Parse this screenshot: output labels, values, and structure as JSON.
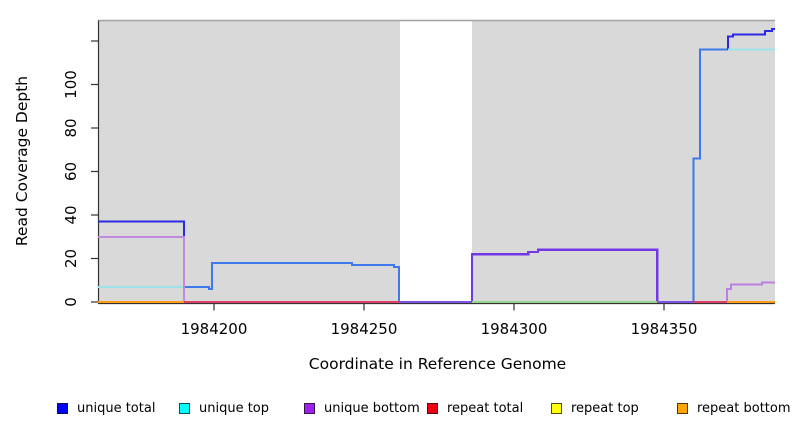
{
  "chart_data": {
    "type": "line",
    "subtype": "step-coverage",
    "title": "",
    "xlabel": "Coordinate in Reference Genome",
    "ylabel": "Read Coverage Depth",
    "xlim": [
      1984161.4,
      1984387
    ],
    "ylim": [
      0,
      129
    ],
    "x_ticks": [
      1984200,
      1984250,
      1984300,
      1984350
    ],
    "y_ticks": [
      0,
      20,
      40,
      60,
      80,
      100
    ],
    "y_extra_unlabeled_tick": 120,
    "grid": false,
    "plot_background": "#d9d9d9",
    "plot_top_border_color": "#a2a2a2",
    "axis_color": "#333333",
    "gap_region": {
      "from": 1984262,
      "to": 1984286
    },
    "legend_position": "bottom",
    "legend": [
      {
        "label": "unique total",
        "color": "#0000ff"
      },
      {
        "label": "unique top",
        "color": "#00ffff"
      },
      {
        "label": "unique bottom",
        "color": "#a020f0"
      },
      {
        "label": "repeat total",
        "color": "#ee0010"
      },
      {
        "label": "repeat top",
        "color": "#ffff00"
      },
      {
        "label": "repeat bottom",
        "color": "#ffa500"
      }
    ],
    "series": [
      {
        "name": "unique total",
        "segments": [
          {
            "color": "#2a2ae2",
            "width": 2,
            "points": [
              [
                1984161.4,
                37
              ],
              [
                1984190,
                37
              ],
              [
                1984190,
                7
              ]
            ]
          },
          {
            "color": "#3e78ec",
            "width": 2,
            "points": [
              [
                1984190,
                7
              ],
              [
                1984198.4,
                7
              ],
              [
                1984198.4,
                6
              ],
              [
                1984199.3,
                6
              ],
              [
                1984199.3,
                18
              ],
              [
                1984246,
                18
              ],
              [
                1984246,
                17
              ],
              [
                1984260,
                17
              ],
              [
                1984260,
                16
              ],
              [
                1984261.7,
                16
              ],
              [
                1984261.7,
                0
              ]
            ]
          },
          {
            "color": "#7338e6",
            "width": 2.4,
            "points": [
              [
                1984286,
                0
              ],
              [
                1984286,
                22
              ],
              [
                1984304.7,
                22
              ],
              [
                1984304.7,
                23
              ],
              [
                1984308,
                23
              ],
              [
                1984308,
                24
              ],
              [
                1984347.7,
                24
              ],
              [
                1984347.7,
                0
              ]
            ]
          },
          {
            "color": "#3e78ec",
            "width": 2,
            "points": [
              [
                1984359.9,
                0
              ],
              [
                1984359.9,
                66
              ],
              [
                1984362,
                66
              ],
              [
                1984362,
                116
              ],
              [
                1984371.3,
                116
              ]
            ]
          },
          {
            "color": "#2a2ae2",
            "width": 2,
            "points": [
              [
                1984371.3,
                116
              ],
              [
                1984371.3,
                122
              ],
              [
                1984373,
                122
              ],
              [
                1984373,
                123
              ],
              [
                1984383.7,
                123
              ],
              [
                1984383.7,
                124.7
              ],
              [
                1984386,
                124.7
              ],
              [
                1984386,
                125.5
              ],
              [
                1984387,
                125.5
              ]
            ]
          }
        ]
      },
      {
        "name": "unique top",
        "segments": [
          {
            "color": "#9be3e9",
            "width": 2,
            "points": [
              [
                1984161.4,
                7
              ],
              [
                1984190,
                7
              ]
            ]
          },
          {
            "color": "#9be3e9",
            "width": 2,
            "points": [
              [
                1984371.3,
                116
              ],
              [
                1984387,
                116
              ]
            ]
          }
        ]
      },
      {
        "name": "unique bottom",
        "segments": [
          {
            "color": "#c08ade",
            "width": 2,
            "points": [
              [
                1984161.4,
                30
              ],
              [
                1984190,
                30
              ],
              [
                1984190,
                0
              ]
            ]
          },
          {
            "color": "#7d50e8",
            "width": 2,
            "points": [
              [
                1984261.7,
                0
              ],
              [
                1984286,
                0
              ]
            ]
          },
          {
            "color": "#7d50e8",
            "width": 2.4,
            "points": [
              [
                1984347.7,
                0
              ],
              [
                1984359.9,
                0
              ]
            ]
          },
          {
            "color": "#bd7fe0",
            "width": 2,
            "points": [
              [
                1984371,
                0
              ],
              [
                1984371,
                6
              ],
              [
                1984372.3,
                6
              ],
              [
                1984372.3,
                8
              ],
              [
                1984382.7,
                8
              ],
              [
                1984382.7,
                9
              ],
              [
                1984387,
                9
              ]
            ]
          }
        ]
      },
      {
        "name": "repeat total",
        "segments": [
          {
            "color": "#dd4066",
            "width": 1.6,
            "points": [
              [
                1984190,
                0
              ],
              [
                1984261.7,
                0
              ]
            ]
          },
          {
            "color": "#dd4066",
            "width": 1.6,
            "points": [
              [
                1984359.9,
                0
              ],
              [
                1984371,
                0
              ]
            ]
          }
        ]
      },
      {
        "name": "repeat top",
        "segments": [
          {
            "color": "#96d590",
            "width": 1.6,
            "points": [
              [
                1984286,
                0
              ],
              [
                1984347.7,
                0
              ]
            ]
          }
        ]
      },
      {
        "name": "repeat bottom",
        "segments": [
          {
            "color": "#ff9b17",
            "width": 2,
            "points": [
              [
                1984161.4,
                0
              ],
              [
                1984190,
                0
              ]
            ]
          },
          {
            "color": "#ff9b17",
            "width": 2,
            "points": [
              [
                1984371,
                0
              ],
              [
                1984387,
                0
              ]
            ]
          }
        ]
      }
    ]
  }
}
